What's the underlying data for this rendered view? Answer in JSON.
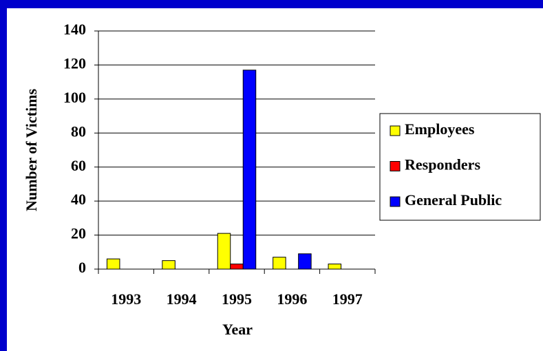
{
  "chart_data": {
    "type": "bar",
    "xlabel": "Year",
    "ylabel": "Number of Victims",
    "categories": [
      "1993",
      "1994",
      "1995",
      "1996",
      "1997"
    ],
    "series": [
      {
        "name": "Employees",
        "color": "#ffff00",
        "values": [
          6,
          5,
          21,
          7,
          3
        ]
      },
      {
        "name": "Responders",
        "color": "#ff0000",
        "values": [
          0,
          0,
          3,
          0,
          0
        ]
      },
      {
        "name": "General Public",
        "color": "#0000ff",
        "values": [
          0,
          0,
          117,
          9,
          0
        ]
      }
    ],
    "ylim": [
      0,
      140
    ],
    "yticks": [
      0,
      20,
      40,
      60,
      80,
      100,
      120,
      140
    ],
    "grid": true,
    "legend": "right"
  }
}
